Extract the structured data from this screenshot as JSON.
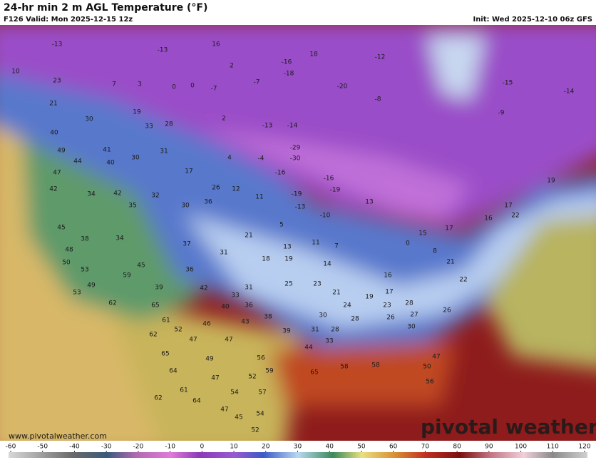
{
  "header": {
    "title": "24-hr min 2 m AGL Temperature (°F)",
    "valid": "F126 Valid: Mon 2025-12-15 12z",
    "init": "Init: Wed 2025-12-10 06z GFS"
  },
  "map_labels": [
    -13,
    -13,
    16,
    10,
    23,
    7,
    3,
    0,
    0,
    -7,
    2,
    -16,
    18,
    -12,
    -18,
    -7,
    -20,
    -8,
    -15,
    -14,
    21,
    19,
    30,
    33,
    28,
    2,
    -13,
    -14,
    -9,
    40,
    41,
    49,
    30,
    31,
    -29,
    -30,
    4,
    -4,
    44,
    40,
    47,
    17,
    -16,
    -16,
    -19,
    42,
    34,
    42,
    32,
    26,
    12,
    11,
    -19,
    35,
    30,
    36,
    -13,
    -10,
    13,
    19,
    22,
    16,
    17,
    17,
    15,
    45,
    38,
    34,
    5,
    21,
    37,
    31,
    13,
    11,
    7,
    0,
    8,
    48,
    18,
    19,
    14,
    50,
    53,
    45,
    36,
    16,
    21,
    59,
    49,
    39,
    42,
    31,
    25,
    23,
    21,
    19,
    17,
    22,
    53,
    62,
    65,
    33,
    40,
    36,
    24,
    23,
    28,
    26,
    38,
    43,
    30,
    28,
    26,
    27,
    61,
    52,
    46,
    39,
    31,
    28,
    30,
    62,
    47,
    47,
    33,
    44,
    65,
    49,
    56,
    47,
    58,
    58,
    50,
    65,
    64,
    52,
    59,
    56,
    47,
    54,
    61,
    57,
    62,
    64,
    47,
    45,
    54,
    52
  ],
  "watermark": "pivotal weather",
  "website": "www.pivotalweather.com",
  "colorbar": {
    "ticks": [
      -60,
      -50,
      -40,
      -30,
      -20,
      -10,
      0,
      10,
      20,
      30,
      40,
      50,
      60,
      70,
      80,
      90,
      100,
      110,
      120
    ]
  }
}
